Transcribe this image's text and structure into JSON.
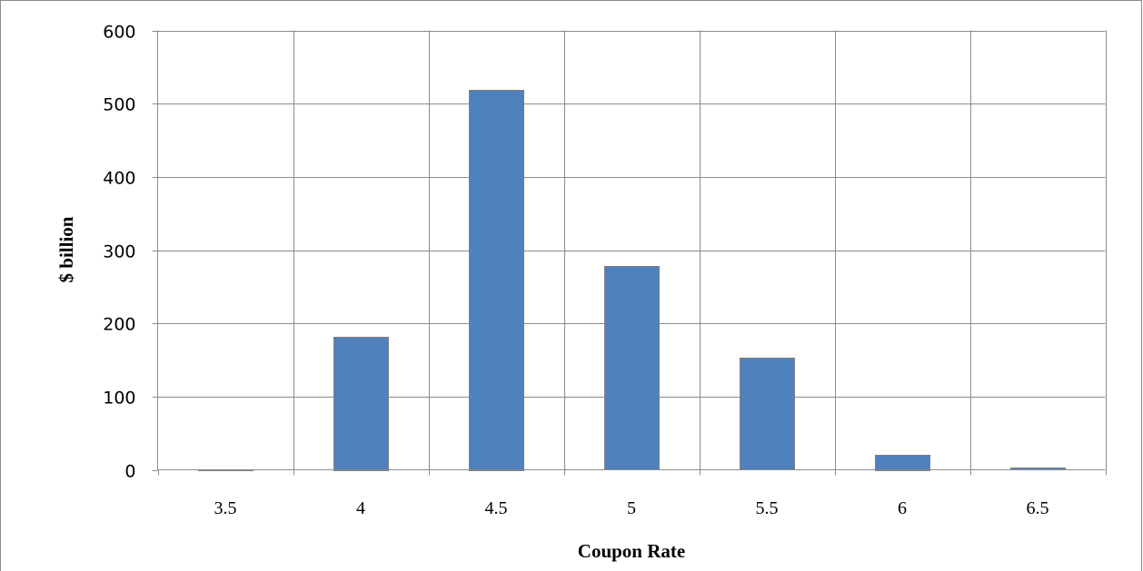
{
  "chart_data": {
    "type": "bar",
    "title": "",
    "xlabel": "Coupon Rate",
    "ylabel": "$ billion",
    "categories": [
      "3.5",
      "4",
      "4.5",
      "5",
      "5.5",
      "6",
      "6.5"
    ],
    "values": [
      1,
      182,
      519,
      278,
      153,
      21,
      3
    ],
    "ylim": [
      0,
      600
    ],
    "yticks": [
      "0",
      "100",
      "200",
      "300",
      "400",
      "500",
      "600"
    ],
    "grid": true,
    "legend": "none",
    "colors": {
      "bar": "#4f81bd",
      "bar_border": "#7f7f7f",
      "grid": "#8c8c8c"
    }
  }
}
